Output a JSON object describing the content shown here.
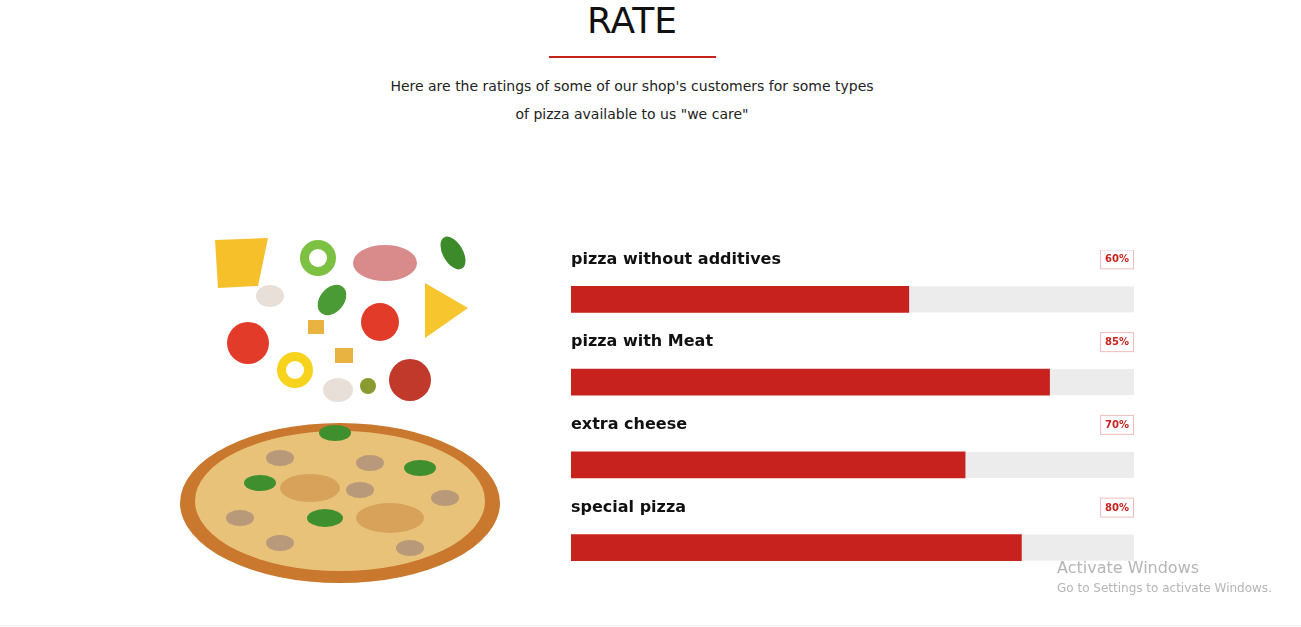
{
  "header": {
    "title": "RATE",
    "subtitle": "Here are the ratings of some of our shop's customers for some types of pizza available to us \"we care\""
  },
  "chart_data": {
    "type": "bar",
    "orientation": "horizontal",
    "categories": [
      "pizza without additives",
      "pizza with Meat",
      "extra cheese",
      "special pizza"
    ],
    "values": [
      60,
      85,
      70,
      80
    ],
    "value_labels": [
      "60%",
      "85%",
      "70%",
      "80%"
    ],
    "color": "#c8221e",
    "xlim": [
      0,
      100
    ],
    "grid": false,
    "tick_labels": false,
    "data_labels": true,
    "legend": "none"
  },
  "watermark": {
    "line1": "Activate Windows",
    "line2": "Go to Settings to activate Windows."
  }
}
